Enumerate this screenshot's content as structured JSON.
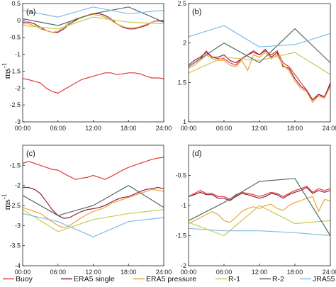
{
  "x_ticks": [
    "00:00",
    "06:00",
    "12:00",
    "18:00",
    "24:00"
  ],
  "ylabel": "ms",
  "ylabel_sup": "-1",
  "colors": {
    "Buoy": "#e23a3a",
    "ERA5 single": "#8e1e3c",
    "ERA5 pressure": "#f0a23a",
    "R-1": "#c7c94d",
    "R-2": "#4f6f62",
    "JRA55": "#7fbde6"
  },
  "legend": [
    {
      "name": "Buoy",
      "color": "#e23a3a"
    },
    {
      "name": "ERA5 single",
      "color": "#8e1e3c"
    },
    {
      "name": "ERA5 pressure",
      "color": "#f0a23a"
    },
    {
      "name": "R-1",
      "color": "#c7c94d"
    },
    {
      "name": "R-2",
      "color": "#4f6f62"
    },
    {
      "name": "JRA55",
      "color": "#7fbde6"
    }
  ],
  "chart_data": [
    {
      "type": "line",
      "panel": "(a)",
      "xlim": [
        0,
        24
      ],
      "ylim": [
        -3,
        0.5
      ],
      "yticks": [
        "0.5",
        "0",
        "-0.5",
        "-1",
        "-1.5",
        "-2",
        "-2.5",
        "-3"
      ],
      "yvals": [
        0.5,
        0,
        -0.5,
        -1,
        -1.5,
        -2,
        -2.5,
        -3
      ],
      "series": [
        {
          "name": "Buoy",
          "x": [
            0,
            1,
            2,
            3,
            4,
            5,
            6,
            7,
            8,
            9,
            10,
            11,
            12,
            13,
            14,
            15,
            16,
            17,
            18,
            19,
            20,
            21,
            22,
            23,
            24
          ],
          "y": [
            -1.72,
            -1.75,
            -1.8,
            -1.85,
            -2.0,
            -2.1,
            -2.15,
            -2.05,
            -1.95,
            -1.85,
            -1.75,
            -1.7,
            -1.65,
            -1.6,
            -1.55,
            -1.55,
            -1.6,
            -1.58,
            -1.55,
            -1.55,
            -1.58,
            -1.65,
            -1.7,
            -1.7,
            -1.72
          ]
        },
        {
          "name": "ERA5 single",
          "x": [
            0,
            1,
            2,
            3,
            4,
            5,
            6,
            7,
            8,
            9,
            10,
            11,
            12,
            13,
            14,
            15,
            16,
            17,
            18,
            19,
            20,
            21,
            22,
            23,
            24
          ],
          "y": [
            -0.05,
            -0.05,
            -0.1,
            -0.2,
            -0.3,
            -0.35,
            -0.35,
            -0.25,
            -0.1,
            0.0,
            0.1,
            0.15,
            0.2,
            0.2,
            0.15,
            0.05,
            -0.1,
            -0.2,
            -0.25,
            -0.25,
            -0.2,
            -0.15,
            -0.05,
            0.0,
            0.0
          ]
        },
        {
          "name": "ERA5 pressure",
          "x": [
            0,
            1,
            2,
            3,
            4,
            5,
            6,
            7,
            8,
            9,
            10,
            11,
            12,
            13,
            14,
            15,
            16,
            17,
            18,
            19,
            20,
            21,
            22,
            23,
            24
          ],
          "y": [
            -0.1,
            -0.1,
            -0.15,
            -0.25,
            -0.3,
            -0.35,
            -0.32,
            -0.2,
            -0.05,
            0.05,
            0.1,
            0.15,
            0.18,
            0.15,
            0.1,
            0.0,
            -0.1,
            -0.18,
            -0.22,
            -0.22,
            -0.18,
            -0.12,
            -0.05,
            -0.02,
            -0.05
          ]
        },
        {
          "name": "R-1",
          "x": [
            0,
            6,
            12,
            18,
            24
          ],
          "y": [
            -0.15,
            -0.25,
            0.1,
            -0.05,
            -0.1
          ]
        },
        {
          "name": "R-2",
          "x": [
            0,
            6,
            12,
            18,
            24
          ],
          "y": [
            0.05,
            -0.15,
            0.2,
            0.4,
            -0.05
          ]
        },
        {
          "name": "JRA55",
          "x": [
            0,
            6,
            12,
            18,
            24
          ],
          "y": [
            0.3,
            0.1,
            0.4,
            0.2,
            0.3
          ]
        }
      ]
    },
    {
      "type": "line",
      "panel": "(b)",
      "xlim": [
        0,
        24
      ],
      "ylim": [
        1,
        2.5
      ],
      "yticks": [
        "2.5",
        "2",
        "1.5",
        "1"
      ],
      "yvals": [
        2.5,
        2,
        1.5,
        1
      ],
      "series": [
        {
          "name": "Buoy",
          "x": [
            0,
            1,
            2,
            3,
            4,
            5,
            6,
            7,
            8,
            9,
            10,
            11,
            12,
            13,
            14,
            15,
            16,
            17,
            18,
            19,
            20,
            21,
            22,
            23,
            24
          ],
          "y": [
            1.7,
            1.75,
            1.8,
            1.9,
            1.82,
            1.8,
            1.8,
            1.75,
            1.72,
            1.8,
            1.85,
            1.88,
            1.85,
            1.9,
            1.85,
            1.9,
            1.75,
            1.7,
            1.6,
            1.5,
            1.4,
            1.25,
            1.35,
            1.3,
            1.5
          ]
        },
        {
          "name": "ERA5 single",
          "x": [
            0,
            1,
            2,
            3,
            4,
            5,
            6,
            7,
            8,
            9,
            10,
            11,
            12,
            13,
            14,
            15,
            16,
            17,
            18,
            19,
            20,
            21,
            22,
            23,
            24
          ],
          "y": [
            1.72,
            1.78,
            1.82,
            1.88,
            1.82,
            1.82,
            1.85,
            1.78,
            1.75,
            1.8,
            1.85,
            1.9,
            1.85,
            1.92,
            1.82,
            1.88,
            1.7,
            1.68,
            1.55,
            1.45,
            1.4,
            1.28,
            1.35,
            1.32,
            1.48
          ]
        },
        {
          "name": "ERA5 pressure",
          "x": [
            0,
            1,
            2,
            3,
            4,
            5,
            6,
            7,
            8,
            9,
            10,
            11,
            12,
            13,
            14,
            15,
            16,
            17,
            18,
            19,
            20,
            21,
            22,
            23,
            24
          ],
          "y": [
            1.68,
            1.72,
            1.78,
            1.85,
            1.8,
            1.78,
            1.78,
            1.72,
            1.7,
            1.78,
            1.65,
            1.85,
            1.82,
            1.88,
            1.8,
            1.85,
            1.72,
            1.65,
            1.52,
            1.42,
            1.38,
            1.25,
            1.33,
            1.3,
            1.45
          ]
        },
        {
          "name": "R-1",
          "x": [
            0,
            6,
            12,
            18,
            24
          ],
          "y": [
            1.62,
            1.82,
            1.78,
            1.88,
            1.6
          ]
        },
        {
          "name": "R-2",
          "x": [
            0,
            6,
            12,
            18,
            24
          ],
          "y": [
            1.7,
            2.0,
            1.75,
            2.18,
            1.75
          ]
        },
        {
          "name": "JRA55",
          "x": [
            0,
            6,
            12,
            18,
            24
          ],
          "y": [
            2.08,
            2.22,
            1.95,
            1.98,
            2.12
          ]
        }
      ]
    },
    {
      "type": "line",
      "panel": "(c)",
      "xlim": [
        0,
        24
      ],
      "ylim": [
        -4,
        -1
      ],
      "yticks": [
        "-1.5",
        "-2",
        "-2.5",
        "-3",
        "-3.5",
        "-4"
      ],
      "yvals": [
        -1.5,
        -2,
        -2.5,
        -3,
        -3.5,
        -4
      ],
      "series": [
        {
          "name": "Buoy",
          "x": [
            0,
            1,
            2,
            3,
            4,
            5,
            6,
            7,
            8,
            9,
            10,
            11,
            12,
            13,
            14,
            15,
            16,
            17,
            18,
            19,
            20,
            21,
            22,
            23,
            24
          ],
          "y": [
            -1.45,
            -1.4,
            -1.45,
            -1.5,
            -1.55,
            -1.6,
            -1.62,
            -1.7,
            -1.78,
            -1.85,
            -1.82,
            -1.8,
            -1.75,
            -1.8,
            -1.85,
            -1.78,
            -1.7,
            -1.62,
            -1.55,
            -1.5,
            -1.45,
            -1.4,
            -1.35,
            -1.32,
            -1.3
          ]
        },
        {
          "name": "ERA5 single",
          "x": [
            0,
            1,
            2,
            3,
            4,
            5,
            6,
            7,
            8,
            9,
            10,
            11,
            12,
            13,
            14,
            15,
            16,
            17,
            18,
            19,
            20,
            21,
            22,
            23,
            24
          ],
          "y": [
            -2.05,
            -2.05,
            -2.1,
            -2.2,
            -2.4,
            -2.6,
            -2.75,
            -2.82,
            -2.8,
            -2.72,
            -2.65,
            -2.6,
            -2.58,
            -2.55,
            -2.5,
            -2.42,
            -2.35,
            -2.3,
            -2.28,
            -2.22,
            -2.15,
            -2.1,
            -2.08,
            -2.05,
            -2.08
          ]
        },
        {
          "name": "ERA5 pressure",
          "x": [
            0,
            1,
            2,
            3,
            4,
            5,
            6,
            7,
            8,
            9,
            10,
            11,
            12,
            13,
            14,
            15,
            16,
            17,
            18,
            19,
            20,
            21,
            22,
            23,
            24
          ],
          "y": [
            -2.55,
            -2.6,
            -2.65,
            -2.7,
            -2.8,
            -2.9,
            -3.0,
            -3.05,
            -3.0,
            -2.9,
            -2.8,
            -2.72,
            -2.65,
            -2.6,
            -2.55,
            -2.45,
            -2.4,
            -2.35,
            -2.3,
            -2.25,
            -2.2,
            -2.15,
            -2.1,
            -2.12,
            -2.15
          ]
        },
        {
          "name": "R-1",
          "x": [
            0,
            6,
            12,
            18,
            24
          ],
          "y": [
            -2.6,
            -3.15,
            -2.85,
            -2.7,
            -2.6
          ]
        },
        {
          "name": "R-2",
          "x": [
            0,
            6,
            12,
            18,
            24
          ],
          "y": [
            -2.25,
            -2.75,
            -2.5,
            -2.0,
            -2.55
          ]
        },
        {
          "name": "JRA55",
          "x": [
            0,
            6,
            12,
            18,
            24
          ],
          "y": [
            -2.7,
            -2.9,
            -3.28,
            -2.9,
            -2.8
          ]
        }
      ]
    },
    {
      "type": "line",
      "panel": "(d)",
      "xlim": [
        0,
        24
      ],
      "ylim": [
        -2,
        0
      ],
      "yticks": [
        "-0.5",
        "-1",
        "-1.5",
        "-2"
      ],
      "yvals": [
        -0.5,
        -1,
        -1.5,
        -2
      ],
      "series": [
        {
          "name": "Buoy",
          "x": [
            0,
            1,
            2,
            3,
            4,
            5,
            6,
            7,
            8,
            9,
            10,
            11,
            12,
            13,
            14,
            15,
            16,
            17,
            18,
            19,
            20,
            21,
            22,
            23,
            24
          ],
          "y": [
            -0.85,
            -0.8,
            -0.75,
            -0.8,
            -0.8,
            -0.85,
            -0.85,
            -0.9,
            -0.82,
            -0.78,
            -0.8,
            -0.82,
            -0.85,
            -0.82,
            -0.78,
            -0.8,
            -0.85,
            -0.8,
            -0.75,
            -0.72,
            -0.68,
            -0.78,
            -0.72,
            -0.75,
            -0.72
          ]
        },
        {
          "name": "ERA5 single",
          "x": [
            0,
            1,
            2,
            3,
            4,
            5,
            6,
            7,
            8,
            9,
            10,
            11,
            12,
            13,
            14,
            15,
            16,
            17,
            18,
            19,
            20,
            21,
            22,
            23,
            24
          ],
          "y": [
            -0.85,
            -0.82,
            -0.78,
            -0.82,
            -0.82,
            -0.88,
            -0.88,
            -0.92,
            -0.85,
            -0.8,
            -0.82,
            -0.85,
            -0.88,
            -0.85,
            -0.8,
            -0.82,
            -0.88,
            -0.82,
            -0.78,
            -0.75,
            -0.7,
            -0.8,
            -0.75,
            -0.78,
            -0.75
          ]
        },
        {
          "name": "ERA5 pressure",
          "x": [
            0,
            1,
            2,
            3,
            4,
            5,
            6,
            7,
            8,
            9,
            10,
            11,
            12,
            13,
            14,
            15,
            16,
            17,
            18,
            19,
            20,
            21,
            22,
            23,
            24
          ],
          "y": [
            -1.3,
            -1.25,
            -1.2,
            -1.15,
            -1.1,
            -1.15,
            -1.25,
            -1.28,
            -1.2,
            -1.1,
            -1.05,
            -1.02,
            -1.05,
            -1.0,
            -0.98,
            -1.05,
            -1.08,
            -1.0,
            -0.95,
            -0.92,
            -0.88,
            -0.85,
            -1.1,
            -0.9,
            -0.92
          ]
        },
        {
          "name": "R-1",
          "x": [
            0,
            6,
            12,
            18,
            24
          ],
          "y": [
            -1.28,
            -1.5,
            -1.0,
            -1.3,
            -1.25
          ]
        },
        {
          "name": "R-2",
          "x": [
            0,
            6,
            12,
            18,
            24
          ],
          "y": [
            -1.25,
            -0.95,
            -0.6,
            -0.55,
            -1.5
          ]
        },
        {
          "name": "JRA55",
          "x": [
            0,
            6,
            12,
            18,
            24
          ],
          "y": [
            -1.38,
            -1.42,
            -1.42,
            -1.45,
            -1.5
          ]
        }
      ]
    }
  ]
}
